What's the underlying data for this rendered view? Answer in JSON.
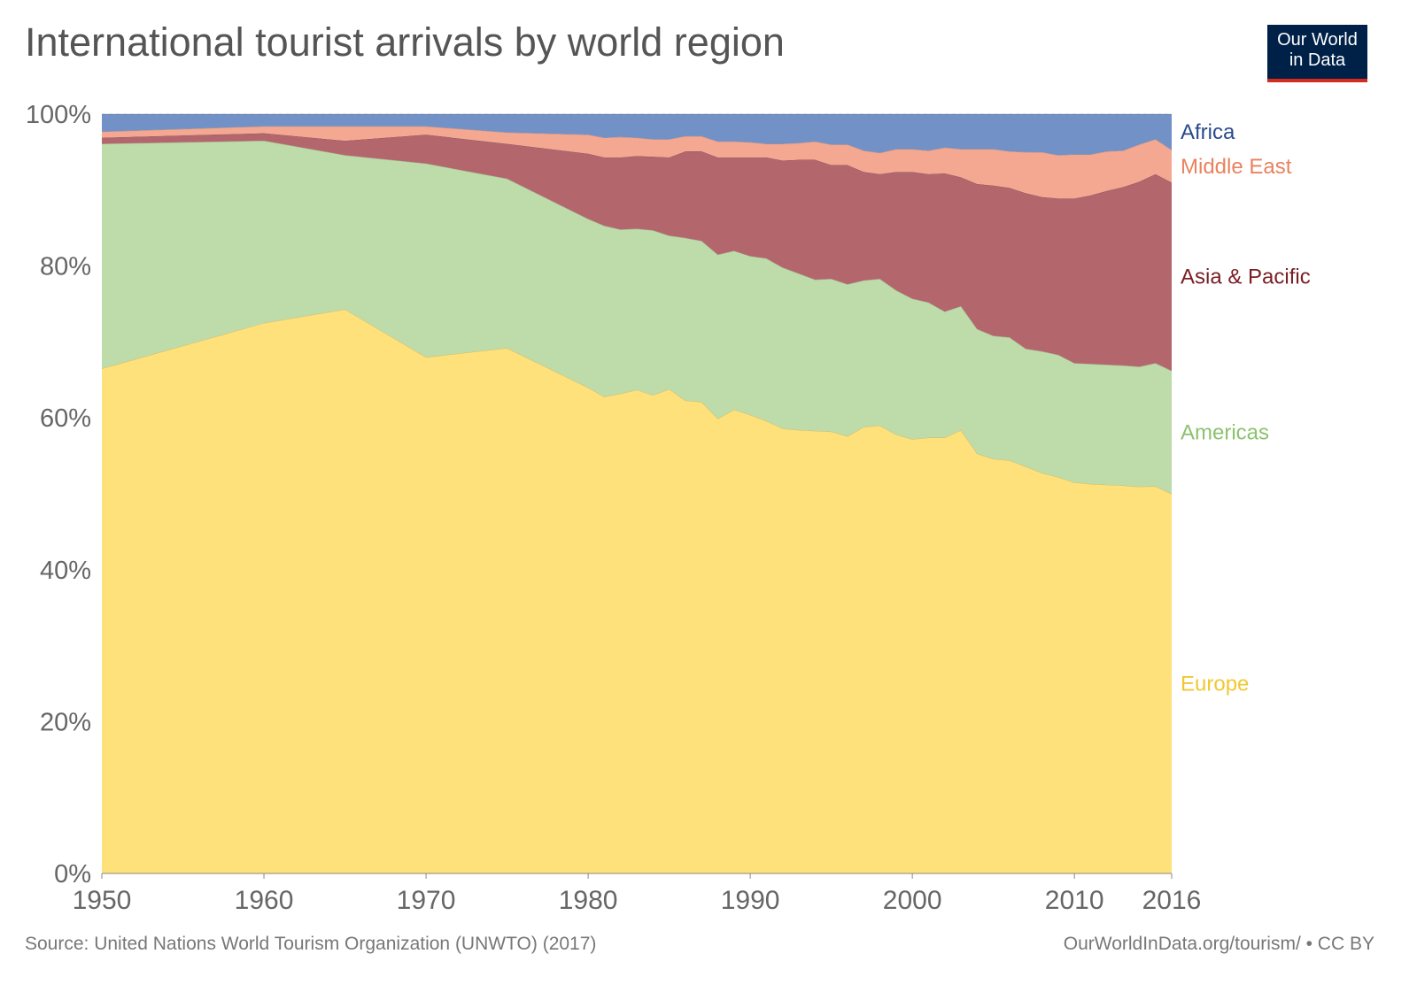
{
  "title": "International tourist arrivals by world region",
  "logo": {
    "line1": "Our World",
    "line2": "in Data",
    "bg": "#002147",
    "accent": "#d42b21"
  },
  "footer": {
    "source": "Source: United Nations World Tourism Organization (UNWTO) (2017)",
    "credit": "OurWorldInData.org/tourism/ • CC BY"
  },
  "chart_data": {
    "type": "area",
    "stacked": "relative",
    "x": [
      1950,
      1960,
      1965,
      1970,
      1975,
      1980,
      1981,
      1982,
      1983,
      1984,
      1985,
      1986,
      1987,
      1988,
      1989,
      1990,
      1991,
      1992,
      1993,
      1994,
      1995,
      1996,
      1997,
      1998,
      1999,
      2000,
      2001,
      2002,
      2003,
      2004,
      2005,
      2006,
      2007,
      2008,
      2009,
      2010,
      2011,
      2012,
      2013,
      2014,
      2015,
      2016
    ],
    "x_ticks": [
      "1950",
      "1960",
      "1970",
      "1980",
      "1990",
      "2000",
      "2010",
      "2016"
    ],
    "y_ticks": [
      "0%",
      "20%",
      "40%",
      "60%",
      "80%",
      "100%"
    ],
    "ylim": [
      0,
      100
    ],
    "grid": true,
    "legend": "right-inline",
    "series": [
      {
        "name": "Europe",
        "color": "#fee17a",
        "label_color": "#f0c832",
        "values": [
          66.5,
          72.5,
          74.3,
          68,
          69.2,
          64,
          62.8,
          63.2,
          63.7,
          63,
          63.8,
          62.3,
          62.1,
          59.9,
          61.1,
          60.4,
          59.6,
          58.6,
          58.4,
          58.3,
          58.2,
          57.6,
          58.8,
          59,
          57.8,
          57.2,
          57.4,
          57.4,
          58.4,
          55.3,
          54.6,
          54.4,
          53.6,
          52.7,
          52.2,
          51.5,
          51.3,
          51.2,
          51.1,
          51,
          51,
          50
        ]
      },
      {
        "name": "Americas",
        "color": "#bddcaa",
        "label_color": "#8cc26e",
        "values": [
          29.6,
          24,
          20.3,
          25.5,
          22.3,
          22.2,
          22.5,
          21.6,
          21.2,
          21.7,
          20.2,
          21.4,
          21.2,
          21.6,
          20.9,
          20.9,
          21.4,
          21.2,
          20.6,
          19.9,
          20.1,
          20,
          19.3,
          19.3,
          19,
          18.5,
          17.8,
          16.6,
          16.3,
          16.4,
          16.2,
          16.2,
          15.5,
          16,
          16.1,
          15.7,
          15.8,
          15.8,
          15.8,
          15.8,
          16.2,
          16.2
        ]
      },
      {
        "name": "Asia & Pacific",
        "color": "#b3676d",
        "label_color": "#7a1e25",
        "values": [
          0.8,
          1,
          1.9,
          3.8,
          4.6,
          8.6,
          9,
          9.5,
          9.6,
          9.7,
          10.3,
          11.4,
          11.8,
          12.8,
          12.3,
          13,
          13.3,
          14.1,
          15,
          15.8,
          15,
          15.7,
          14.3,
          13.8,
          15.6,
          16.7,
          16.9,
          18.2,
          17,
          19.1,
          19.8,
          19.7,
          20.5,
          20.3,
          20.6,
          21.7,
          22.2,
          22.9,
          23.5,
          24.4,
          24.9,
          24.8
        ]
      },
      {
        "name": "Middle East",
        "color": "#f4a891",
        "label_color": "#e9825f",
        "values": [
          0.8,
          0.9,
          1.9,
          1.1,
          1.5,
          2.5,
          2.6,
          2.7,
          2.4,
          2.3,
          2.4,
          2,
          2,
          2.1,
          2.1,
          2,
          1.8,
          2.2,
          2.2,
          2.4,
          2.7,
          2.7,
          2.8,
          2.8,
          3,
          3,
          3.1,
          3.4,
          3.7,
          4.6,
          4.8,
          4.8,
          5.4,
          5.9,
          5.7,
          5.8,
          5.4,
          5.2,
          4.8,
          4.9,
          4.6,
          4.3
        ]
      },
      {
        "name": "Africa",
        "color": "#7291c7",
        "label_color": "#2a4a8c",
        "values": [
          2.3,
          1.6,
          1.6,
          1.6,
          2.4,
          2.7,
          3.1,
          3,
          3.1,
          3.3,
          3.3,
          2.9,
          2.9,
          3.6,
          3.6,
          3.7,
          3.9,
          3.9,
          3.8,
          3.6,
          4,
          4,
          4.8,
          5.1,
          4.6,
          4.6,
          4.8,
          4.4,
          4.6,
          4.6,
          4.6,
          4.9,
          5,
          5,
          5.4,
          5.3,
          5.3,
          4.9,
          4.8,
          4,
          3.3,
          4.7
        ]
      }
    ]
  }
}
